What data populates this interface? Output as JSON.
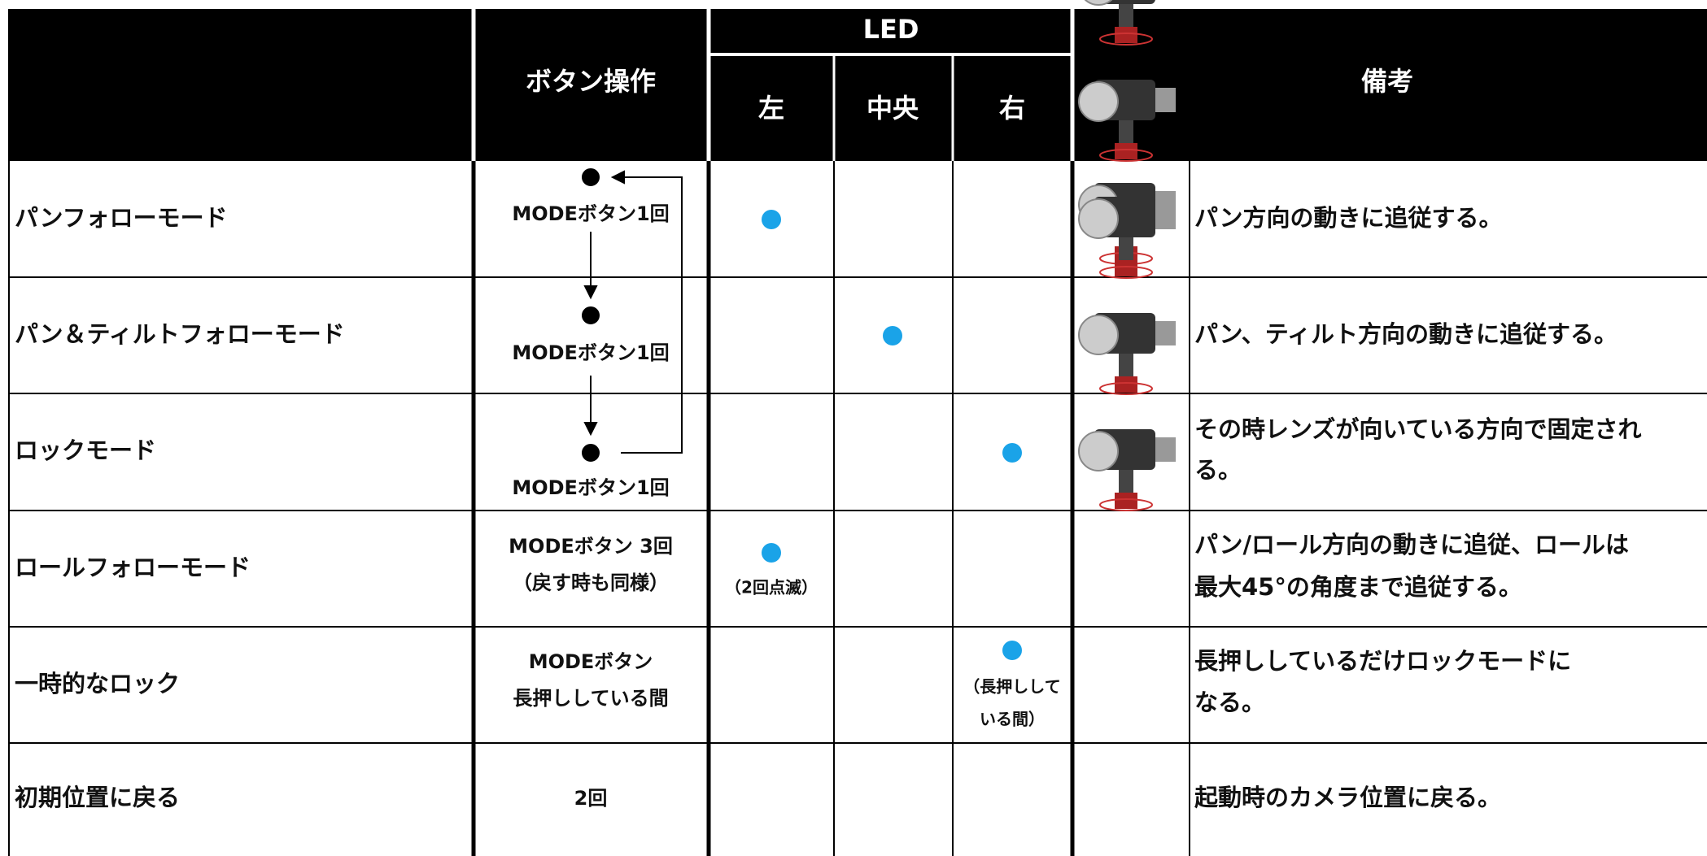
{
  "header": {
    "button": "ボタン操作",
    "led": "LED",
    "left": "左",
    "center": "中央",
    "right": "右",
    "notes": "備考"
  },
  "rows": [
    {
      "mode": "パンフォローモード",
      "button": [
        "MODEボタン1回"
      ],
      "notes": [
        "パン方向の動きに追従する。"
      ]
    },
    {
      "mode": "パン＆ティルトフォローモード",
      "button": [
        "MODEボタン1回"
      ],
      "notes": [
        "パン、ティルト方向の動きに追従する。"
      ]
    },
    {
      "mode": "ロックモード",
      "button": [
        "MODEボタン1回"
      ],
      "notes": [
        "その時レンズが向いている方向で固定され",
        "る。"
      ]
    },
    {
      "mode": "ロールフォローモード",
      "button": [
        "MODEボタン 3回",
        "（戻す時も同様）"
      ],
      "led_note": [
        "（2回点滅）"
      ],
      "notes": [
        "パン/ロール方向の動きに追従、ロールは",
        "最大45°の角度まで追従する。"
      ]
    },
    {
      "mode": "一時的なロック",
      "button": [
        "MODEボタン",
        "長押ししている間"
      ],
      "led_note": [
        "（長押しして",
        "いる間）"
      ],
      "notes": [
        "長押ししているだけロックモードに",
        "なる。"
      ]
    },
    {
      "mode": "初期位置に戻る",
      "button": [
        "2回"
      ],
      "notes": [
        "起動時のカメラ位置に戻る。"
      ]
    }
  ]
}
